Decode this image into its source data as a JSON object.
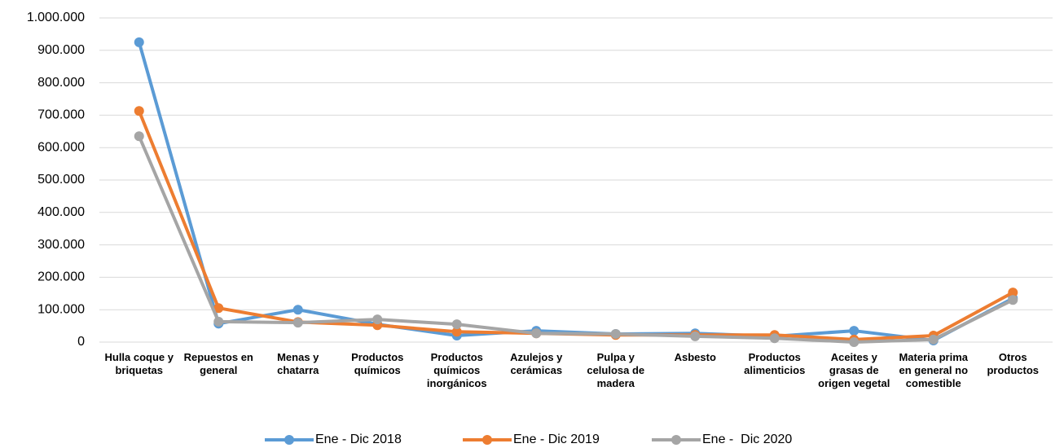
{
  "chart_data": {
    "type": "line",
    "categories": [
      "Hulla coque y briquetas",
      "Repuestos en general",
      "Menas y chatarra",
      "Productos químicos",
      "Productos químicos inorgánicos",
      "Azulejos y cerámicas",
      "Pulpa y celulosa de madera",
      "Asbesto",
      "Productos alimenticios",
      "Aceites y grasas de origen vegetal",
      "Materia prima en general no comestible",
      "Otros productos"
    ],
    "series": [
      {
        "name": "Ene - Dic 2018",
        "color": "#5b9bd5",
        "values": [
          925000,
          57000,
          100000,
          55000,
          20000,
          35000,
          25000,
          27000,
          18000,
          35000,
          5000,
          135000
        ]
      },
      {
        "name": "Ene - Dic 2019",
        "color": "#ed7d31",
        "values": [
          713000,
          105000,
          62000,
          52000,
          32000,
          27000,
          22000,
          22000,
          22000,
          8000,
          20000,
          153000
        ]
      },
      {
        "name": "Ene -  Dic 2020",
        "color": "#a5a5a5",
        "values": [
          635000,
          63000,
          60000,
          70000,
          55000,
          27000,
          25000,
          18000,
          12000,
          0,
          8000,
          130000
        ]
      }
    ],
    "ylim": [
      0,
      1000000
    ],
    "yticks": [
      0,
      {
        "value": 100000,
        "label": "100.000"
      },
      {
        "value": 200000,
        "label": "200.000"
      },
      {
        "value": 300000,
        "label": "300.000"
      },
      {
        "value": 400000,
        "label": "400.000"
      },
      {
        "value": 500000,
        "label": "500.000"
      },
      {
        "value": 600000,
        "label": "600.000"
      },
      {
        "value": 700000,
        "label": "700.000"
      },
      {
        "value": 800000,
        "label": "800.000"
      },
      {
        "value": 900000,
        "label": "900.000"
      },
      {
        "value": 1000000,
        "label": "1.000.000"
      }
    ],
    "grid": true,
    "legend": "bottom"
  }
}
